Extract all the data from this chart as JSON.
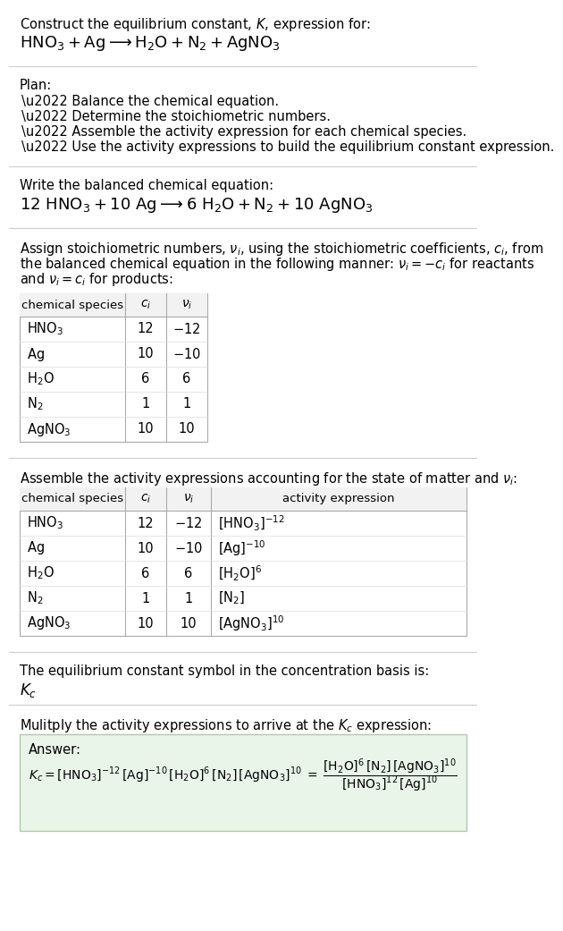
{
  "bg_color": "#ffffff",
  "text_color": "#000000",
  "section1_line1": "Construct the equilibrium constant, $K$, expression for:",
  "section1_line2": "$\\mathrm{HNO_3 + Ag \\longrightarrow H_2O + N_2 + AgNO_3}$",
  "plan_header": "Plan:",
  "plan_items": [
    "\\u2022 Balance the chemical equation.",
    "\\u2022 Determine the stoichiometric numbers.",
    "\\u2022 Assemble the activity expression for each chemical species.",
    "\\u2022 Use the activity expressions to build the equilibrium constant expression."
  ],
  "balanced_header": "Write the balanced chemical equation:",
  "balanced_eq": "$\\mathrm{12\\ HNO_3 + 10\\ Ag \\longrightarrow 6\\ H_2O + N_2 + 10\\ AgNO_3}$",
  "stoich_text": [
    "Assign stoichiometric numbers, $\\nu_i$, using the stoichiometric coefficients, $c_i$, from",
    "the balanced chemical equation in the following manner: $\\nu_i = -c_i$ for reactants",
    "and $\\nu_i = c_i$ for products:"
  ],
  "table1_header": [
    "chemical species",
    "$c_i$",
    "$\\nu_i$"
  ],
  "table1_rows": [
    [
      "$\\mathrm{HNO_3}$",
      "12",
      "$-12$"
    ],
    [
      "$\\mathrm{Ag}$",
      "10",
      "$-10$"
    ],
    [
      "$\\mathrm{H_2O}$",
      "6",
      "6"
    ],
    [
      "$\\mathrm{N_2}$",
      "1",
      "1"
    ],
    [
      "$\\mathrm{AgNO_3}$",
      "10",
      "10"
    ]
  ],
  "activity_header": "Assemble the activity expressions accounting for the state of matter and $\\nu_i$:",
  "table2_header": [
    "chemical species",
    "$c_i$",
    "$\\nu_i$",
    "activity expression"
  ],
  "table2_rows": [
    [
      "$\\mathrm{HNO_3}$",
      "12",
      "$-12$",
      "$[\\mathrm{HNO_3}]^{-12}$"
    ],
    [
      "$\\mathrm{Ag}$",
      "10",
      "$-10$",
      "$[\\mathrm{Ag}]^{-10}$"
    ],
    [
      "$\\mathrm{H_2O}$",
      "6",
      "6",
      "$[\\mathrm{H_2O}]^{6}$"
    ],
    [
      "$\\mathrm{N_2}$",
      "1",
      "1",
      "$[\\mathrm{N_2}]$"
    ],
    [
      "$\\mathrm{AgNO_3}$",
      "10",
      "10",
      "$[\\mathrm{AgNO_3}]^{10}$"
    ]
  ],
  "kc_header": "The equilibrium constant symbol in the concentration basis is:",
  "kc_symbol": "$K_c$",
  "multiply_header": "Mulitply the activity expressions to arrive at the $K_c$ expression:",
  "answer_label": "Answer:",
  "answer_kc_expr": "$K_c = [\\mathrm{HNO_3}]^{-12}\\,[\\mathrm{Ag}]^{-10}\\,[\\mathrm{H_2O}]^{6}\\,[\\mathrm{N_2}]\\,[\\mathrm{AgNO_3}]^{10}$",
  "answer_eq_sign": "$=$",
  "answer_fraction": "$\\dfrac{[\\mathrm{H_2O}]^{6}\\,[\\mathrm{N_2}]\\,[\\mathrm{AgNO_3}]^{10}}{[\\mathrm{HNO_3}]^{12}\\,[\\mathrm{Ag}]^{10}}$",
  "hline_color": "#cccccc",
  "table_line_color": "#aaaaaa",
  "table_row_color": "#dddddd",
  "answer_bg": "#eaf5ea",
  "answer_border": "#aaccaa"
}
